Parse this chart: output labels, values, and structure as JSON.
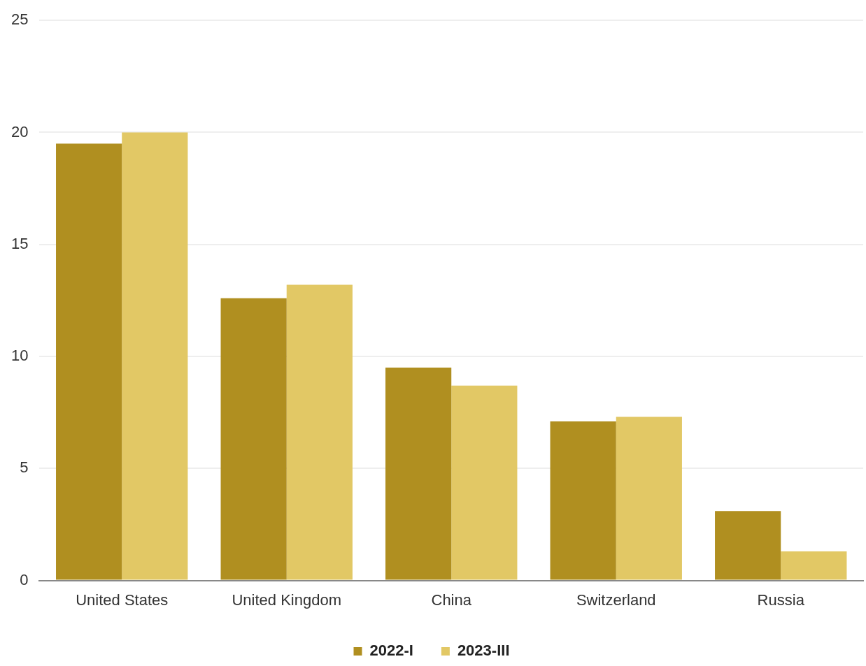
{
  "chart_data": {
    "type": "bar",
    "categories": [
      "United States",
      "United Kingdom",
      "China",
      "Switzerland",
      "Russia"
    ],
    "series": [
      {
        "name": "2022-I",
        "color": "#b08f20",
        "values": [
          19.5,
          12.6,
          9.5,
          7.1,
          3.1
        ]
      },
      {
        "name": "2023-III",
        "color": "#e2c865",
        "values": [
          20.0,
          13.2,
          8.7,
          7.3,
          1.3
        ]
      }
    ],
    "ylim": [
      0,
      25
    ],
    "yticks": [
      0,
      5,
      10,
      15,
      20,
      25
    ],
    "grid": "y",
    "legend": "bottom"
  }
}
